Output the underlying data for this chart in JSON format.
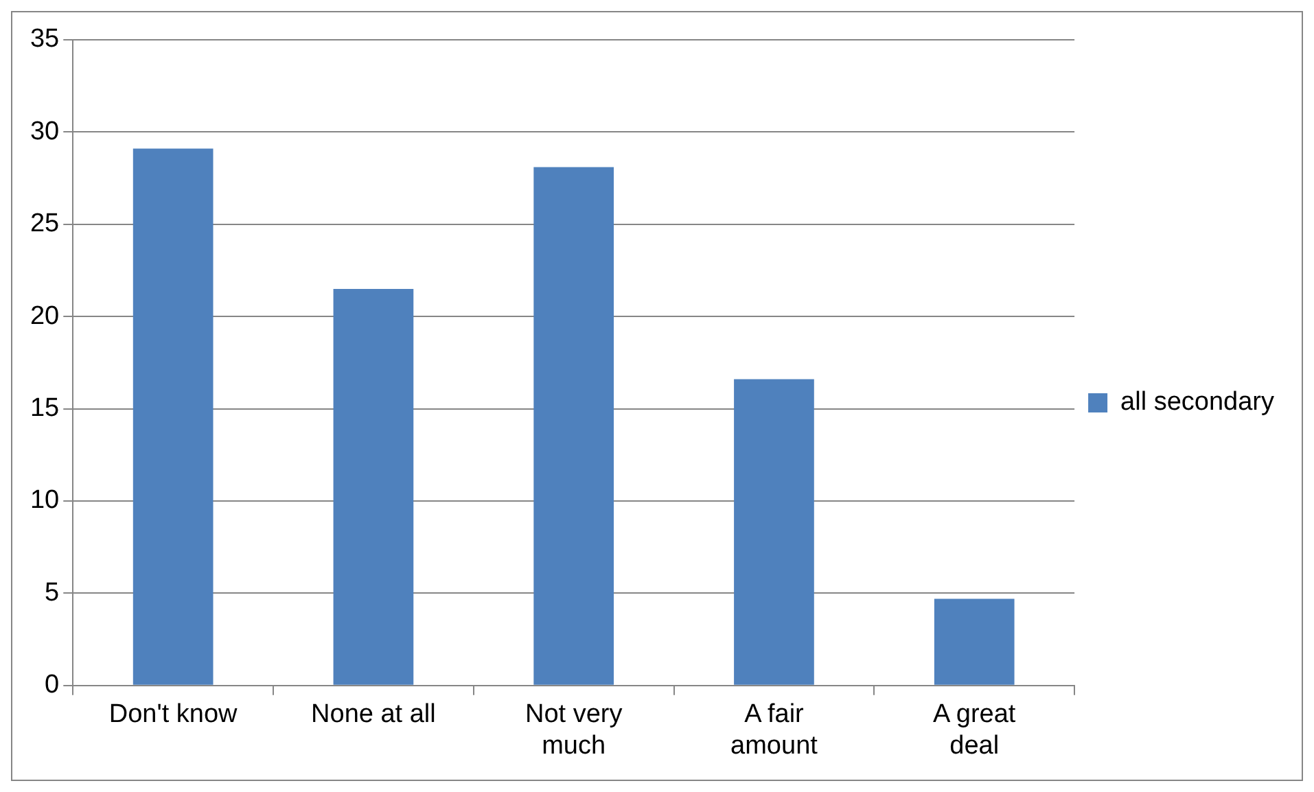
{
  "chart_data": {
    "type": "bar",
    "categories": [
      "Don't know",
      "None at all",
      "Not very much",
      "A fair amount",
      "A great deal"
    ],
    "series": [
      {
        "name": "all secondary",
        "color": "#4f81bd",
        "values": [
          29.1,
          21.5,
          28.1,
          16.6,
          4.7
        ]
      }
    ],
    "ylim": [
      0,
      35
    ],
    "yticks": [
      0,
      5,
      10,
      15,
      20,
      25,
      30,
      35
    ],
    "grid": "y",
    "legend": "right"
  }
}
